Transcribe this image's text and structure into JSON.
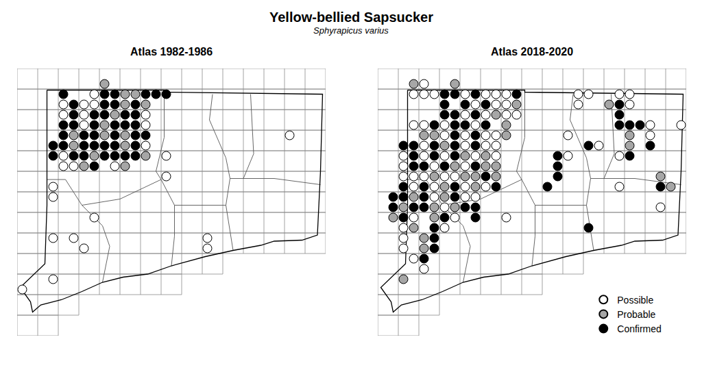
{
  "title": "Yellow-bellied Sapsucker",
  "subtitle": "Sphyrapicus varius",
  "map": {
    "grid_x": [
      0,
      2,
      4,
      6,
      8,
      10,
      12,
      14,
      16,
      18,
      20,
      22,
      24,
      26,
      28,
      30
    ],
    "grid_rows": [
      [
        24,
        26,
        0,
        30
      ],
      [
        22,
        24,
        0,
        30
      ],
      [
        20,
        22,
        0,
        30
      ],
      [
        18,
        20,
        0,
        30
      ],
      [
        16,
        18,
        0,
        30
      ],
      [
        14,
        16,
        0,
        30
      ],
      [
        12,
        14,
        0,
        30
      ],
      [
        10,
        12,
        0,
        30
      ],
      [
        8,
        10,
        0,
        30
      ],
      [
        6,
        8,
        0,
        20
      ],
      [
        4,
        6,
        0,
        16
      ],
      [
        2,
        4,
        0,
        6
      ],
      [
        0,
        2,
        0,
        4
      ]
    ],
    "outline": {
      "x": [
        2.9,
        14.3,
        14.3,
        29.7,
        29.5,
        29.2,
        27.7,
        25,
        23.7,
        21,
        18.3,
        15,
        12.7,
        10.3,
        8.3,
        6.3,
        4.3,
        2.3,
        1.5,
        1.3,
        0.3,
        2.7,
        2.9,
        2.9
      ],
      "y": [
        23.9,
        23.9,
        23.7,
        23.5,
        16,
        9.8,
        9.3,
        9.2,
        8.8,
        8.3,
        7.7,
        6.8,
        6,
        5.7,
        5.2,
        4.3,
        3.5,
        3,
        2.3,
        3.3,
        4.7,
        7,
        12.7,
        23.9
      ]
    },
    "counties": [
      {
        "x": [
          14.3,
          14.3,
          13.5,
          14
        ],
        "y": [
          23.7,
          19.3,
          16,
          15.2
        ]
      },
      {
        "x": [
          2.9,
          4.7,
          6.3,
          10,
          14
        ],
        "y": [
          15.2,
          15.2,
          12.7,
          13.3,
          15.2
        ]
      },
      {
        "x": [
          6.3,
          8.3,
          9,
          8.3
        ],
        "y": [
          12.7,
          10.7,
          8.7,
          5.2
        ]
      },
      {
        "x": [
          14,
          15.3,
          20.3
        ],
        "y": [
          15.2,
          12.7,
          12.7
        ]
      },
      {
        "x": [
          19,
          18.7,
          20.3,
          20.7
        ],
        "y": [
          23.5,
          21,
          17.3,
          15.3
        ]
      },
      {
        "x": [
          22.7,
          23,
          22
        ],
        "y": [
          23.5,
          17.7,
          15.3
        ]
      },
      {
        "x": [
          29.5,
          25,
          20.7,
          20.3
        ],
        "y": [
          14.7,
          15.3,
          15.3,
          12.7
        ]
      },
      {
        "x": [
          20.3,
          20.7,
          21
        ],
        "y": [
          12.7,
          10,
          8.3
        ]
      },
      {
        "x": [
          15.3,
          15.3,
          15
        ],
        "y": [
          12.7,
          9.7,
          6.8
        ]
      }
    ]
  },
  "chart_data": [
    {
      "type": "scatter",
      "title": "Atlas 1982-1986",
      "xlim": [
        0,
        30
      ],
      "ylim": [
        0,
        26
      ],
      "tick_labels": false,
      "marker": "circle",
      "series": [
        {
          "name": "Possible",
          "color": "#ffffff",
          "x": [
            7.5,
            4.5,
            6.5,
            7.5,
            4.5,
            6.5,
            12.5,
            6.5,
            12.5,
            26.5,
            12.5,
            4.5,
            14.5,
            4.5,
            5.5,
            9.5,
            14.5,
            3.5,
            3.5,
            7.5,
            3.5,
            5.5,
            18.5,
            6.5,
            18.5,
            3.5,
            0.5
          ],
          "y": [
            23.5,
            22.5,
            22.5,
            22.5,
            21.5,
            21.5,
            21.5,
            20.5,
            20.5,
            19.5,
            18.5,
            17.5,
            17.5,
            16.5,
            16.5,
            16.5,
            15.5,
            14.5,
            13.5,
            11.5,
            9.5,
            9.5,
            9.5,
            8.5,
            8.5,
            5.5,
            4.5
          ]
        },
        {
          "name": "Probable",
          "color": "#a6a6a6",
          "x": [
            8.5,
            10.5,
            11.5,
            10.5,
            12.5,
            9.5,
            8.5,
            5.5,
            8.5,
            10.5,
            5.5,
            10.5,
            7.5,
            12.5,
            6.5,
            10.5
          ],
          "y": [
            24.5,
            23.5,
            23.5,
            22.5,
            22.5,
            21.5,
            20.5,
            19.5,
            19.5,
            19.5,
            18.5,
            18.5,
            17.5,
            17.5,
            16.5,
            16.5
          ]
        },
        {
          "name": "Confirmed",
          "color": "#000000",
          "x": [
            4.5,
            8.5,
            9.5,
            12.5,
            13.5,
            14.5,
            5.5,
            8.5,
            9.5,
            11.5,
            5.5,
            7.5,
            8.5,
            10.5,
            11.5,
            4.5,
            5.5,
            7.5,
            9.5,
            10.5,
            11.5,
            4.5,
            6.5,
            7.5,
            9.5,
            11.5,
            12.5,
            3.5,
            4.5,
            6.5,
            7.5,
            8.5,
            9.5,
            11.5,
            3.5,
            5.5,
            6.5,
            8.5,
            9.5,
            10.5,
            11.5,
            7.5
          ],
          "y": [
            23.5,
            23.5,
            23.5,
            23.5,
            23.5,
            23.5,
            22.5,
            22.5,
            22.5,
            22.5,
            21.5,
            21.5,
            21.5,
            21.5,
            21.5,
            20.5,
            20.5,
            20.5,
            20.5,
            20.5,
            20.5,
            19.5,
            19.5,
            19.5,
            19.5,
            19.5,
            19.5,
            18.5,
            18.5,
            18.5,
            18.5,
            18.5,
            18.5,
            18.5,
            17.5,
            17.5,
            17.5,
            17.5,
            17.5,
            17.5,
            17.5,
            16.5
          ]
        }
      ]
    },
    {
      "type": "scatter",
      "title": "Atlas 2018-2020",
      "xlim": [
        0,
        30
      ],
      "ylim": [
        0,
        26
      ],
      "tick_labels": false,
      "marker": "circle",
      "legend": "lower right",
      "series": [
        {
          "name": "Possible",
          "color": "#ffffff",
          "x": [
            4.5,
            3.5,
            4.5,
            5.5,
            8.5,
            10.5,
            11.5,
            12.5,
            19.5,
            20.5,
            23.5,
            24.5,
            9.5,
            11.5,
            12.5,
            19.5,
            24.5,
            8.5,
            10.5,
            12.5,
            13.5,
            3.5,
            4.5,
            6.5,
            9.5,
            26.5,
            29.5,
            6.5,
            8.5,
            10.5,
            11.5,
            18.5,
            26.5,
            4.5,
            8.5,
            10.5,
            11.5,
            21.5,
            2.5,
            4.5,
            6.5,
            9.5,
            11.5,
            18.5,
            23.5,
            2.5,
            5.5,
            8.5,
            2.5,
            3.5,
            4.5,
            6.5,
            7.5,
            3.5,
            5.5,
            8.5,
            10.5,
            23.5,
            5.5,
            8.5,
            9.5,
            6.5,
            27.5,
            3.5,
            7.5,
            12.5,
            2.5,
            6.5,
            2.5,
            2.5,
            3.5,
            4.5
          ],
          "y": [
            24.5,
            23.5,
            23.5,
            23.5,
            23.5,
            23.5,
            23.5,
            23.5,
            23.5,
            23.5,
            23.5,
            23.5,
            22.5,
            22.5,
            22.5,
            22.5,
            22.5,
            21.5,
            21.5,
            21.5,
            21.5,
            20.5,
            20.5,
            20.5,
            20.5,
            20.5,
            20.5,
            19.5,
            19.5,
            19.5,
            19.5,
            19.5,
            19.5,
            18.5,
            18.5,
            18.5,
            18.5,
            18.5,
            17.5,
            17.5,
            17.5,
            17.5,
            17.5,
            17.5,
            17.5,
            16.5,
            16.5,
            16.5,
            15.5,
            15.5,
            15.5,
            15.5,
            15.5,
            14.5,
            14.5,
            14.5,
            14.5,
            14.5,
            13.5,
            13.5,
            13.5,
            12.5,
            12.5,
            11.5,
            11.5,
            11.5,
            10.5,
            10.5,
            9.5,
            8.5,
            7.5,
            6.5
          ]
        },
        {
          "name": "Probable",
          "color": "#a6a6a6",
          "x": [
            3.5,
            7.5,
            13.5,
            22.5,
            11.5,
            12.5,
            4.5,
            5.5,
            12.5,
            24.5,
            6.5,
            24.5,
            8.5,
            10.5,
            7.5,
            10.5,
            11.5,
            5.5,
            8.5,
            9.5,
            11.5,
            27.5,
            6.5,
            9.5,
            28.5,
            3.5,
            6.5,
            2.5,
            5.5,
            7.5,
            1.5,
            5.5,
            3.5,
            4.5,
            4.5,
            2.5
          ],
          "y": [
            24.5,
            24.5,
            22.5,
            22.5,
            21.5,
            20.5,
            19.5,
            19.5,
            19.5,
            19.5,
            18.5,
            18.5,
            17.5,
            17.5,
            16.5,
            16.5,
            16.5,
            15.5,
            15.5,
            15.5,
            15.5,
            15.5,
            14.5,
            14.5,
            14.5,
            13.5,
            13.5,
            12.5,
            12.5,
            12.5,
            11.5,
            11.5,
            10.5,
            9.5,
            8.5,
            5.5
          ]
        },
        {
          "name": "Confirmed",
          "color": "#000000",
          "x": [
            6.5,
            7.5,
            9.5,
            13.5,
            6.5,
            8.5,
            10.5,
            23.5,
            6.5,
            7.5,
            9.5,
            23.5,
            5.5,
            7.5,
            8.5,
            10.5,
            23.5,
            24.5,
            25.5,
            7.5,
            9.5,
            2.5,
            3.5,
            5.5,
            7.5,
            9.5,
            20.5,
            26.5,
            3.5,
            5.5,
            7.5,
            17.5,
            24.5,
            3.5,
            4.5,
            6.5,
            9.5,
            17.5,
            10.5,
            17.5,
            2.5,
            4.5,
            7.5,
            11.5,
            16.5,
            27.5,
            1.5,
            2.5,
            4.5,
            7.5,
            1.5,
            3.5,
            4.5,
            8.5,
            9.5,
            2.5,
            6.5,
            9.5,
            5.5,
            20.5,
            5.5,
            5.5,
            4.5
          ],
          "y": [
            23.5,
            23.5,
            23.5,
            23.5,
            22.5,
            22.5,
            22.5,
            22.5,
            21.5,
            21.5,
            21.5,
            21.5,
            20.5,
            20.5,
            20.5,
            20.5,
            20.5,
            20.5,
            20.5,
            19.5,
            19.5,
            18.5,
            18.5,
            18.5,
            18.5,
            18.5,
            18.5,
            18.5,
            17.5,
            17.5,
            17.5,
            17.5,
            17.5,
            16.5,
            16.5,
            16.5,
            16.5,
            16.5,
            15.5,
            15.5,
            14.5,
            14.5,
            14.5,
            14.5,
            14.5,
            14.5,
            13.5,
            13.5,
            13.5,
            13.5,
            12.5,
            12.5,
            12.5,
            12.5,
            12.5,
            11.5,
            11.5,
            11.5,
            10.5,
            10.5,
            9.5,
            8.5,
            7.5
          ]
        }
      ]
    }
  ]
}
